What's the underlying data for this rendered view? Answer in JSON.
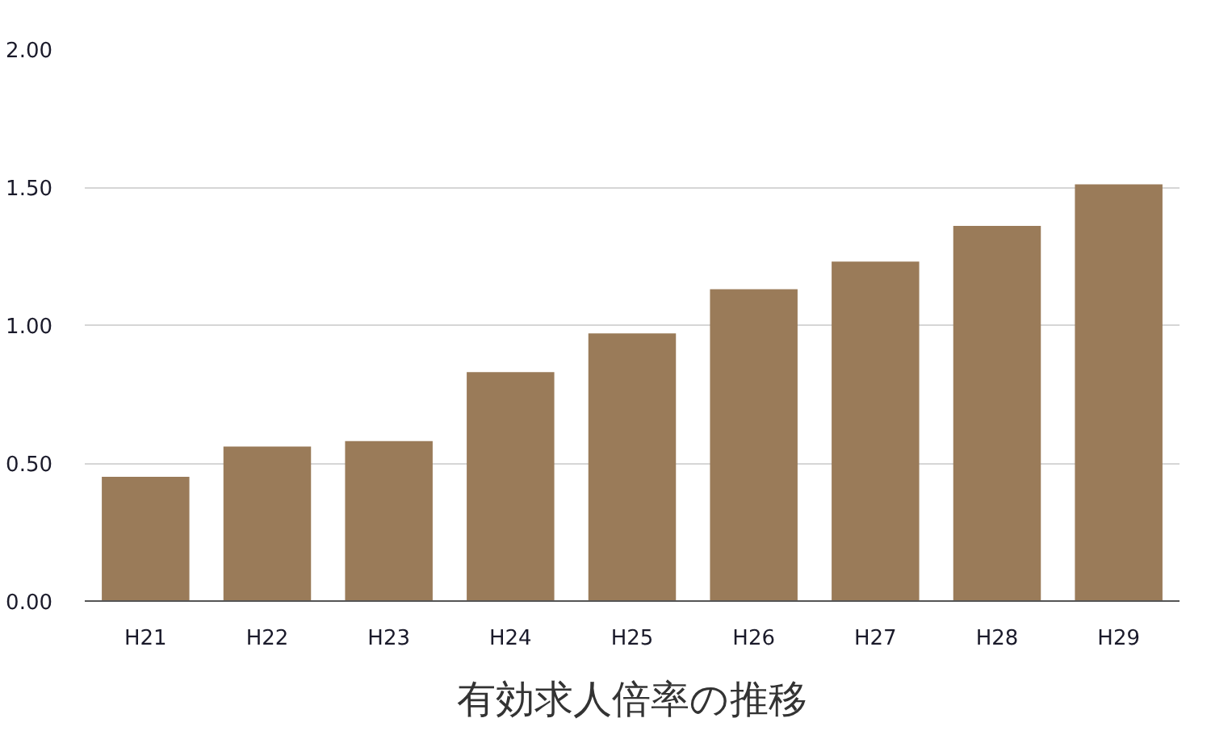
{
  "chart_data": {
    "type": "bar",
    "title": "有効求人倍率の推移",
    "categories": [
      "H21",
      "H22",
      "H23",
      "H24",
      "H25",
      "H26",
      "H27",
      "H28",
      "H29"
    ],
    "values": [
      0.45,
      0.56,
      0.58,
      0.83,
      0.97,
      1.13,
      1.23,
      1.36,
      1.51
    ],
    "color": "#9a7b59",
    "ylim": [
      0,
      2
    ],
    "yticks": [
      {
        "value": 0,
        "label": "0.00"
      },
      {
        "value": 0.5,
        "label": "0.50"
      },
      {
        "value": 1,
        "label": "1.00"
      },
      {
        "value": 1.5,
        "label": "1.50"
      },
      {
        "value": 2,
        "label": "2.00"
      }
    ],
    "grid": "y"
  }
}
